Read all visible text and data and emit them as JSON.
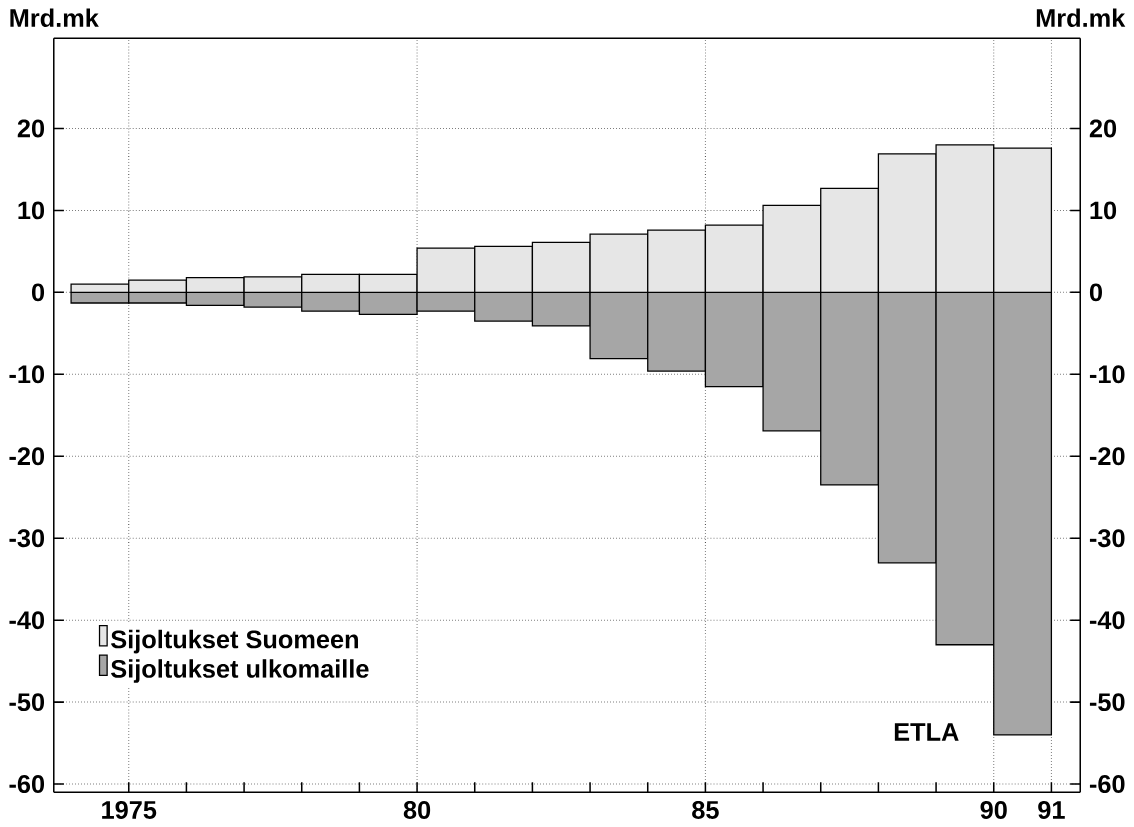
{
  "chart_data": {
    "type": "bar",
    "ylabel": "Mrd.mk",
    "y2label": "Mrd.mk",
    "x": [
      1974.5,
      1975.5,
      1976.5,
      1977.5,
      1978.5,
      1979.5,
      1980.5,
      1981.5,
      1982.5,
      1983.5,
      1984.5,
      1985.5,
      1986.5,
      1987.5,
      1988.5,
      1989.5,
      1990.5
    ],
    "series": [
      {
        "name": "Sijoltukset  Suomeen",
        "color": "#e6e6e6",
        "values": [
          1.0,
          1.5,
          1.8,
          1.9,
          2.2,
          2.2,
          5.4,
          5.6,
          6.1,
          7.1,
          7.6,
          8.2,
          10.6,
          12.7,
          16.9,
          18.0,
          17.6
        ]
      },
      {
        "name": "Sijoltukset ulkomaille",
        "color": "#a6a6a6",
        "values": [
          -1.3,
          -1.3,
          -1.6,
          -1.8,
          -2.3,
          -2.7,
          -2.3,
          -3.5,
          -4.1,
          -8.1,
          -9.6,
          -11.5,
          -16.9,
          -23.5,
          -33,
          -43,
          -54
        ]
      }
    ],
    "xlim": [
      1973.7,
      1991.5
    ],
    "xticks": [
      1975,
      {
        "value": 1976,
        "label": null
      },
      {
        "value": 1977,
        "label": null
      },
      {
        "value": 1978,
        "label": null
      },
      {
        "value": 1979,
        "label": null
      },
      {
        "value": 1980,
        "label": "80"
      },
      {
        "value": 1981,
        "label": null
      },
      {
        "value": 1982,
        "label": null
      },
      {
        "value": 1983,
        "label": null
      },
      {
        "value": 1984,
        "label": null
      },
      {
        "value": 1985,
        "label": "85"
      },
      {
        "value": 1986,
        "label": null
      },
      {
        "value": 1987,
        "label": null
      },
      {
        "value": 1988,
        "label": null
      },
      {
        "value": 1989,
        "label": null
      },
      {
        "value": 1990,
        "label": "90"
      },
      {
        "value": 1991,
        "label": "91"
      }
    ],
    "ylim": [
      -61,
      31
    ],
    "yticks": [
      -60,
      -50,
      -40,
      -30,
      -20,
      -10,
      0,
      10,
      20
    ],
    "y2lim": [
      -61,
      31
    ],
    "y2ticks": [
      -60,
      -50,
      -40,
      -30,
      -20,
      -10,
      0,
      10,
      20
    ],
    "stacked": true,
    "grid": true,
    "legend": "bottom left",
    "annotations": [
      "ETLA"
    ]
  }
}
